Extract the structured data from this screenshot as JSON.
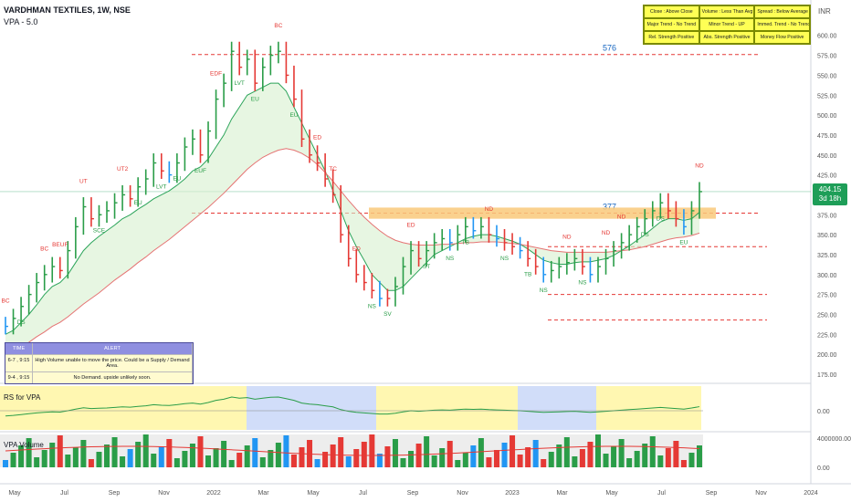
{
  "header": {
    "title": "VARDHMAN TEXTILES, 1W, NSE",
    "indicator": "VPA - 5.0",
    "currency": "INR"
  },
  "info_table": [
    "Close : Above Close",
    "Volume : Less Than Avg",
    "Spread : Below Average",
    "Major Trend - No Trend",
    "Minor Trend - UP",
    "Immed. Trend - No Trend",
    "Rel. Strength Positive",
    "Abs. Strength Positive",
    "Money Flow Positive"
  ],
  "alert_table": {
    "headers": [
      "TIME",
      "ALERT"
    ],
    "rows": [
      [
        "6-7 , 9:15",
        "High Volume unable to move the price. Could be a Supply / Demand Area."
      ],
      [
        "9-4 , 9:15",
        "No Demand. upside unlikely soon."
      ]
    ]
  },
  "pane_labels": {
    "rs": "RS for VPA",
    "vol": "VPA Volume"
  },
  "price_tag": {
    "value": "404.15",
    "sub": "3d 18h"
  },
  "colors": {
    "up": "#2a9d48",
    "down": "#e53935",
    "neutral": "#2196f3",
    "signal_up": "#2a9d48",
    "signal_down": "#e53935"
  },
  "chart_data": {
    "type": "bar",
    "title": "VARDHMAN TEXTILES, 1W, NSE",
    "y_ticks": [
      "600.00",
      "575.00",
      "550.00",
      "525.00",
      "500.00",
      "475.00",
      "450.00",
      "425.00",
      "400.00",
      "375.00",
      "350.00",
      "325.00",
      "300.00",
      "275.00",
      "250.00",
      "225.00",
      "200.00",
      "175.00"
    ],
    "ylim": [
      175,
      610
    ],
    "x_ticks": [
      "May",
      "Jul",
      "Sep",
      "Nov",
      "2022",
      "Mar",
      "May",
      "Jul",
      "Sep",
      "Nov",
      "2023",
      "Mar",
      "May",
      "Jul",
      "Sep",
      "Nov",
      "2024"
    ],
    "close_path": [
      235,
      245,
      260,
      275,
      290,
      300,
      310,
      305,
      330,
      360,
      385,
      370,
      375,
      380,
      390,
      400,
      395,
      410,
      420,
      440,
      430,
      425,
      440,
      460,
      470,
      450,
      480,
      520,
      540,
      580,
      560,
      570,
      540,
      560,
      575,
      580,
      550,
      520,
      470,
      450,
      440,
      420,
      400,
      350,
      320,
      300,
      290,
      280,
      270,
      270,
      285,
      310,
      330,
      320,
      330,
      340,
      345,
      340,
      350,
      360,
      355,
      360,
      350,
      345,
      340,
      335,
      330,
      320,
      310,
      300,
      305,
      310,
      315,
      320,
      310,
      300,
      310,
      320,
      330,
      340,
      350,
      360,
      370,
      380,
      390,
      380,
      370,
      360,
      380,
      404
    ],
    "series": [
      {
        "name": "fast ma",
        "values": [
          225,
          230,
          240,
          250,
          262,
          275,
          285,
          290,
          300,
          315,
          330,
          340,
          348,
          355,
          362,
          370,
          375,
          382,
          388,
          395,
          400,
          405,
          412,
          420,
          430,
          435,
          445,
          460,
          475,
          495,
          510,
          525,
          530,
          535,
          540,
          540,
          530,
          510,
          490,
          470,
          450,
          430,
          405,
          380,
          355,
          335,
          318,
          300,
          290,
          280,
          280,
          285,
          295,
          305,
          315,
          325,
          330,
          335,
          340,
          345,
          348,
          350,
          350,
          348,
          345,
          342,
          338,
          332,
          325,
          318,
          315,
          313,
          313,
          315,
          316,
          316,
          318,
          320,
          324,
          330,
          336,
          343,
          350,
          358,
          366,
          370,
          370,
          368,
          370,
          378
        ]
      },
      {
        "name": "slow ma",
        "values": [
          200,
          205,
          210,
          215,
          222,
          228,
          235,
          240,
          247,
          255,
          263,
          270,
          277,
          285,
          293,
          300,
          307,
          315,
          322,
          330,
          337,
          344,
          352,
          360,
          368,
          376,
          384,
          393,
          402,
          412,
          422,
          432,
          440,
          447,
          452,
          456,
          458,
          456,
          452,
          446,
          438,
          428,
          417,
          405,
          393,
          382,
          372,
          363,
          355,
          348,
          343,
          340,
          338,
          337,
          337,
          337,
          338,
          338,
          339,
          340,
          340,
          341,
          341,
          341,
          340,
          339,
          338,
          336,
          334,
          332,
          330,
          329,
          328,
          328,
          328,
          328,
          328,
          328,
          329,
          330,
          331,
          333,
          335,
          338,
          341,
          344,
          346,
          347,
          349,
          352
        ]
      }
    ],
    "levels": [
      {
        "label": "576",
        "value": 576
      },
      {
        "label": "377",
        "value": 377
      }
    ],
    "signals": [
      "BC",
      "DS",
      "BC",
      "BEUF",
      "UT",
      "SCE",
      "UT2",
      "EU",
      "LVT",
      "EU",
      "EUF",
      "EDF",
      "LVT",
      "EU",
      "BC",
      "EU",
      "ED",
      "TC",
      "ED",
      "NS",
      "SV",
      "ED",
      "ST",
      "NS",
      "TB",
      "ND",
      "NS",
      "TB",
      "NS",
      "ND",
      "NS",
      "ND",
      "ND",
      "DS",
      "DS",
      "EU",
      "ND"
    ],
    "rs_ticks": [
      "0.00"
    ],
    "vol_ticks": [
      "4000000.00",
      "0.00"
    ]
  }
}
